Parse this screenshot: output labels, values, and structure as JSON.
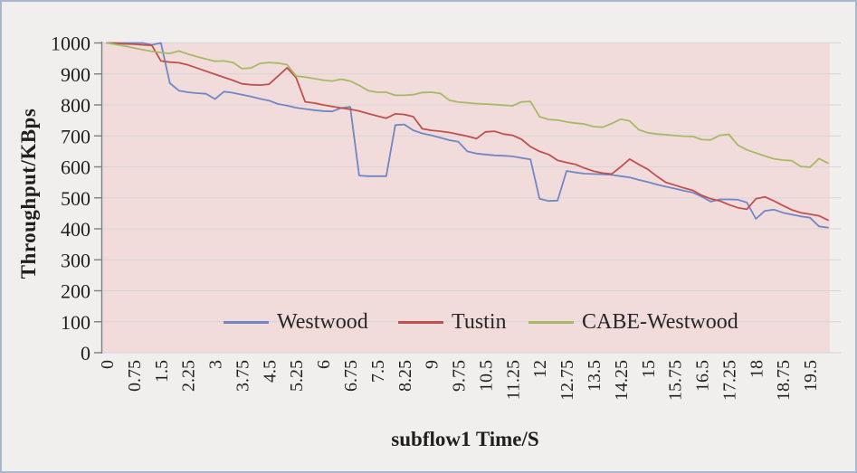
{
  "figure": {
    "background": "#f0efee",
    "border_color": "#a9b7cc"
  },
  "chart_data": {
    "type": "line",
    "title": "",
    "xlabel": "subflow1 Time/S",
    "ylabel": "Throughput/KBps",
    "x_start": 0,
    "x_step": 0.25,
    "x_end": 20,
    "ylim": [
      0,
      1000
    ],
    "grid": "horizontal",
    "legend_position": "inside-bottom",
    "plot_background": "#f2dcdb",
    "grid_color": "#d8d3d7",
    "axis_color": "#7f7f7f",
    "tick_label_color": "#1f1f1f",
    "y_ticks": [
      0,
      100,
      200,
      300,
      400,
      500,
      600,
      700,
      800,
      900,
      1000
    ],
    "x_tick_labels": [
      "0",
      "0.75",
      "1.5",
      "2.25",
      "3",
      "3.75",
      "4.5",
      "5.25",
      "6",
      "6.75",
      "7.5",
      "8.25",
      "9",
      "9.75",
      "10.5",
      "11.25",
      "12",
      "12.75",
      "13.5",
      "14.25",
      "15",
      "15.75",
      "16.5",
      "17.25",
      "18",
      "18.75",
      "19.5"
    ],
    "x_label_every_n_points": 3,
    "series": [
      {
        "name": "Westwood",
        "color": "#7187c5",
        "values": [
          1000,
          1000,
          1000,
          1000,
          1000,
          994,
          1000,
          870,
          846,
          841,
          838,
          836,
          819,
          843,
          839,
          833,
          827,
          820,
          814,
          803,
          798,
          791,
          787,
          783,
          780,
          779,
          790,
          794,
          572,
          570,
          570,
          570,
          735,
          737,
          718,
          708,
          702,
          694,
          686,
          681,
          650,
          643,
          640,
          637,
          636,
          634,
          629,
          624,
          497,
          490,
          491,
          587,
          582,
          578,
          577,
          576,
          574,
          570,
          566,
          558,
          551,
          543,
          536,
          530,
          523,
          517,
          504,
          488,
          495,
          495,
          494,
          485,
          432,
          458,
          462,
          452,
          446,
          440,
          436,
          408,
          404
        ]
      },
      {
        "name": "Tustin",
        "color": "#c0504d",
        "values": [
          1000,
          999,
          997,
          996,
          994,
          992,
          942,
          938,
          936,
          929,
          919,
          909,
          899,
          889,
          879,
          868,
          865,
          864,
          867,
          893,
          920,
          888,
          810,
          806,
          800,
          795,
          790,
          786,
          780,
          772,
          764,
          757,
          771,
          769,
          762,
          723,
          718,
          715,
          711,
          705,
          699,
          691,
          713,
          715,
          706,
          702,
          689,
          665,
          650,
          640,
          621,
          614,
          608,
          596,
          586,
          580,
          577,
          600,
          625,
          608,
          592,
          570,
          550,
          541,
          532,
          524,
          508,
          497,
          490,
          478,
          468,
          463,
          497,
          503,
          490,
          475,
          461,
          452,
          447,
          442,
          428
        ]
      },
      {
        "name": "CABE-Westwood",
        "color": "#a6ba66",
        "values": [
          1000,
          995,
          990,
          984,
          978,
          973,
          969,
          966,
          974,
          964,
          956,
          948,
          941,
          942,
          937,
          917,
          919,
          934,
          937,
          935,
          930,
          893,
          890,
          885,
          880,
          877,
          883,
          877,
          863,
          846,
          841,
          841,
          831,
          831,
          833,
          840,
          841,
          837,
          815,
          809,
          807,
          804,
          803,
          801,
          799,
          797,
          810,
          811,
          762,
          753,
          751,
          745,
          741,
          738,
          730,
          728,
          740,
          754,
          748,
          720,
          710,
          706,
          704,
          701,
          699,
          698,
          688,
          687,
          702,
          705,
          670,
          655,
          645,
          635,
          626,
          622,
          620,
          601,
          599,
          627,
          612
        ]
      }
    ]
  }
}
